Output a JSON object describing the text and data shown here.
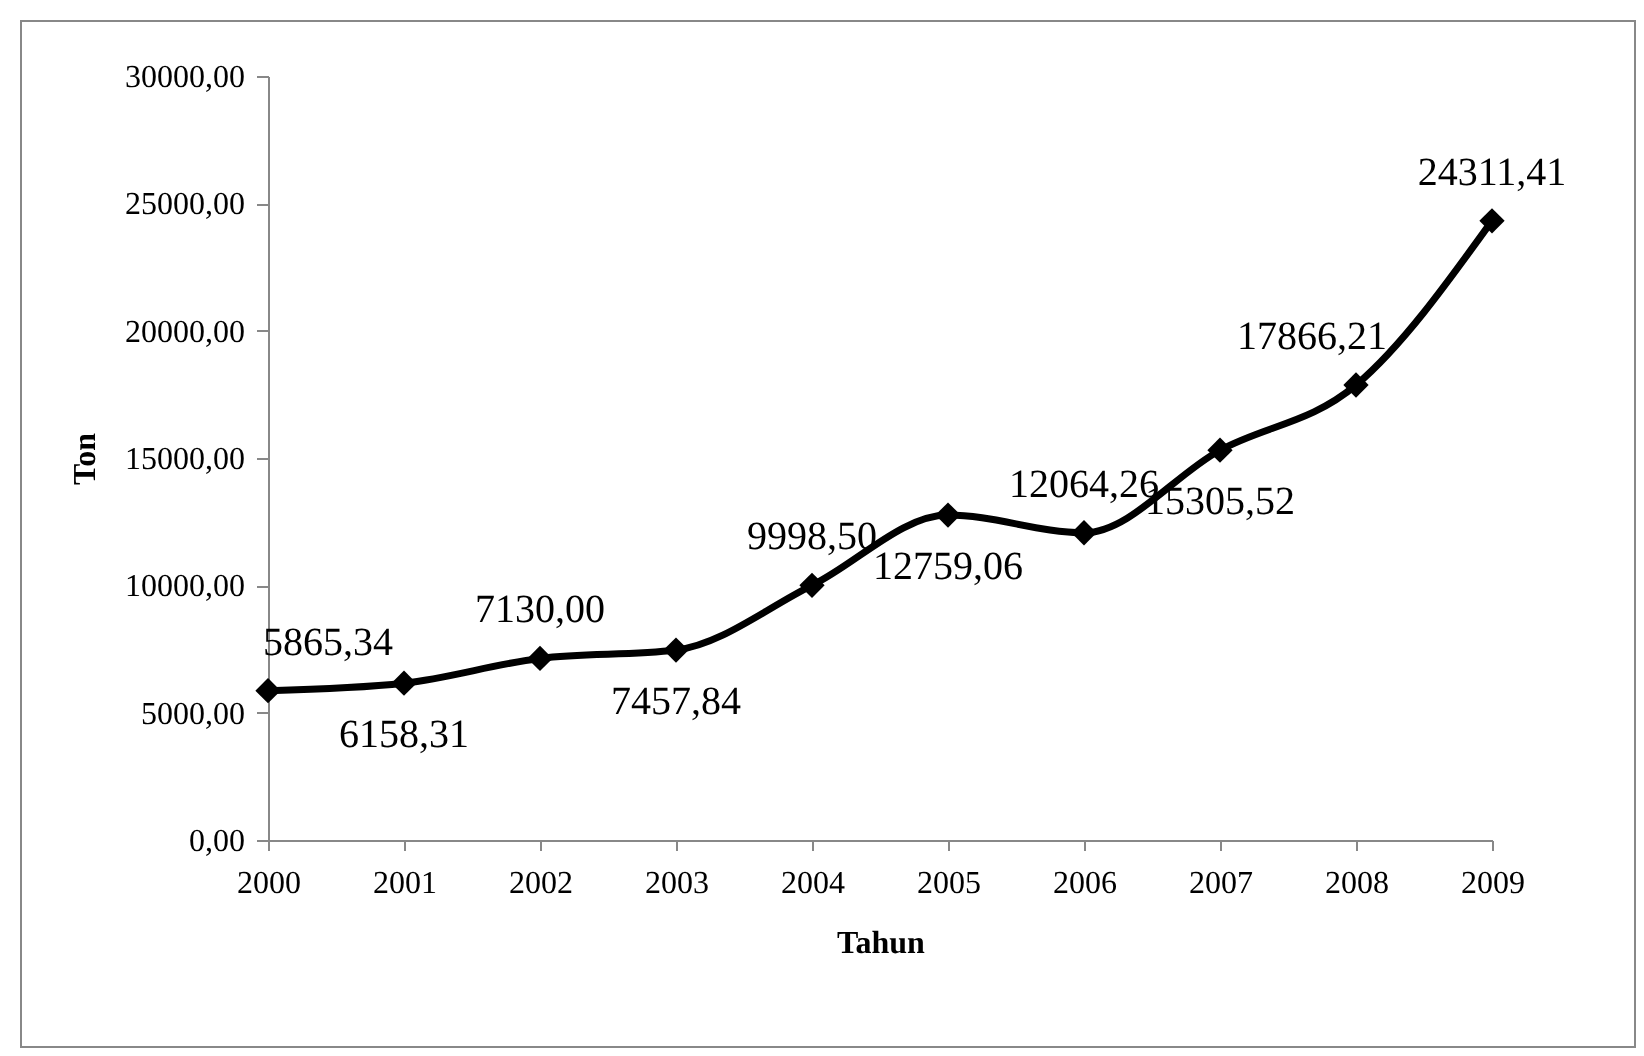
{
  "chart_data": {
    "type": "line",
    "xlabel": "Tahun",
    "ylabel": "Ton",
    "categories": [
      "2000",
      "2001",
      "2002",
      "2003",
      "2004",
      "2005",
      "2006",
      "2007",
      "2008",
      "2009"
    ],
    "series": [
      {
        "color": "#000000",
        "values": [
          5865.34,
          6158.31,
          7130.0,
          7457.84,
          9998.5,
          12759.06,
          12064.26,
          15305.52,
          17866.21,
          24311.41
        ]
      }
    ],
    "value_labels": [
      "5865,34",
      "6158,31",
      "7130,00",
      "7457,84",
      "9998,50",
      "12759,06",
      "12064,26",
      "15305,52",
      "17866,21",
      "24311,41"
    ],
    "ylim": [
      0,
      30000
    ],
    "yticks": [
      {
        "value": 0,
        "label": "0,00"
      },
      {
        "value": 5000,
        "label": "5000,00"
      },
      {
        "value": 10000,
        "label": "10000,00"
      },
      {
        "value": 15000,
        "label": "15000,00"
      },
      {
        "value": 20000,
        "label": "20000,00"
      },
      {
        "value": 25000,
        "label": "25000,00"
      },
      {
        "value": 30000,
        "label": "30000,00"
      }
    ],
    "marker": "diamond",
    "line_style": "solid",
    "grid": false
  }
}
